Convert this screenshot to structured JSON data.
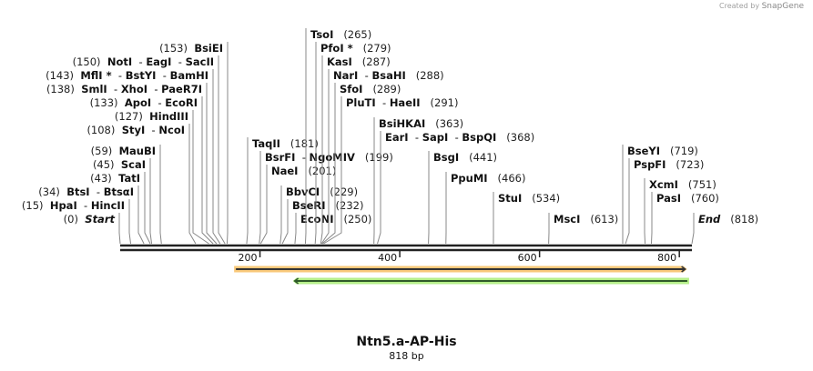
{
  "credit": {
    "prefix": "Created by",
    "brand": "SnapGene"
  },
  "map": {
    "name": "Ntn5.a-AP-His",
    "length_label": "818 bp",
    "length": 818,
    "ticks": [
      200,
      400,
      600,
      800
    ]
  },
  "sites": [
    {
      "pos": 0,
      "names": [
        "Start"
      ],
      "special": true
    },
    {
      "pos": 15,
      "names": [
        "HpaI",
        "HincII"
      ]
    },
    {
      "pos": 34,
      "names": [
        "BtsI",
        "BtsαI"
      ]
    },
    {
      "pos": 43,
      "names": [
        "TatI"
      ]
    },
    {
      "pos": 45,
      "names": [
        "ScaI"
      ]
    },
    {
      "pos": 59,
      "names": [
        "MauBI"
      ]
    },
    {
      "pos": 108,
      "names": [
        "StyI",
        "NcoI"
      ]
    },
    {
      "pos": 127,
      "names": [
        "HindIII"
      ]
    },
    {
      "pos": 133,
      "names": [
        "ApoI",
        "EcoRI"
      ]
    },
    {
      "pos": 138,
      "names": [
        "SmlI",
        "XhoI",
        "PaeR7I"
      ]
    },
    {
      "pos": 143,
      "names": [
        "MflI *",
        "BstYI",
        "BamHI"
      ]
    },
    {
      "pos": 150,
      "names": [
        "NotI",
        "EagI",
        "SacII"
      ]
    },
    {
      "pos": 153,
      "names": [
        "BsiEI"
      ]
    },
    {
      "pos": 181,
      "names": [
        "TaqII"
      ]
    },
    {
      "pos": 199,
      "names": [
        "BsrFI",
        "NgoMIV"
      ]
    },
    {
      "pos": 201,
      "names": [
        "NaeI"
      ]
    },
    {
      "pos": 229,
      "names": [
        "BbvCI"
      ]
    },
    {
      "pos": 232,
      "names": [
        "BseRI"
      ]
    },
    {
      "pos": 250,
      "names": [
        "EcoNI"
      ]
    },
    {
      "pos": 265,
      "names": [
        "TsoI"
      ]
    },
    {
      "pos": 279,
      "names": [
        "PfoI *"
      ]
    },
    {
      "pos": 287,
      "names": [
        "KasI"
      ]
    },
    {
      "pos": 288,
      "names": [
        "NarI",
        "BsaHI"
      ]
    },
    {
      "pos": 289,
      "names": [
        "SfoI"
      ]
    },
    {
      "pos": 291,
      "names": [
        "PluTI",
        "HaeII"
      ]
    },
    {
      "pos": 363,
      "names": [
        "BsiHKAI"
      ]
    },
    {
      "pos": 368,
      "names": [
        "EarI",
        "SapI",
        "BspQI"
      ]
    },
    {
      "pos": 441,
      "names": [
        "BsgI"
      ]
    },
    {
      "pos": 466,
      "names": [
        "PpuMI"
      ]
    },
    {
      "pos": 534,
      "names": [
        "StuI"
      ]
    },
    {
      "pos": 613,
      "names": [
        "MscI"
      ]
    },
    {
      "pos": 719,
      "names": [
        "BseYI"
      ]
    },
    {
      "pos": 723,
      "names": [
        "PspFI"
      ]
    },
    {
      "pos": 751,
      "names": [
        "XcmI"
      ]
    },
    {
      "pos": 760,
      "names": [
        "PasI"
      ]
    },
    {
      "pos": 818,
      "names": [
        "End"
      ],
      "special": true
    }
  ],
  "features": [
    {
      "start": 163,
      "end": 811,
      "direction": "forward",
      "fill": "#f9c97a",
      "line": "#333333"
    },
    {
      "start": 247,
      "end": 814,
      "direction": "reverse",
      "fill": "#b6ef8a",
      "line": "#2f5a2a"
    }
  ]
}
